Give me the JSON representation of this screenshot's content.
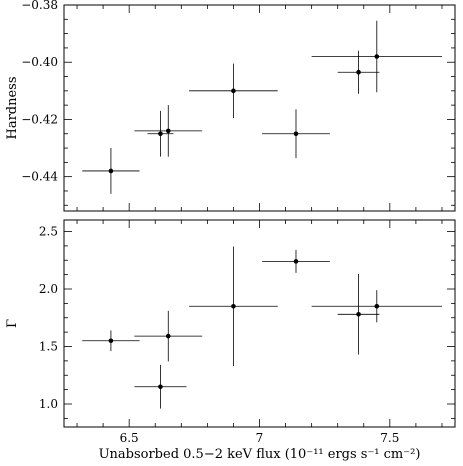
{
  "chart_data": [
    {
      "type": "scatter",
      "panel": "top",
      "ylabel": "Hardness",
      "xlim": [
        6.25,
        7.75
      ],
      "ylim": [
        -0.452,
        -0.38
      ],
      "yticks": [
        -0.44,
        -0.42,
        -0.4,
        -0.38
      ],
      "ytick_labels": [
        "−0.44",
        "−0.42",
        "−0.40",
        "−0.38"
      ],
      "points": [
        {
          "x": 6.43,
          "y": -0.438,
          "xerr": 0.11,
          "yerr": 0.008
        },
        {
          "x": 6.62,
          "y": -0.425,
          "xerr": 0.05,
          "yerr": 0.008
        },
        {
          "x": 6.65,
          "y": -0.424,
          "xerr": 0.13,
          "yerr": 0.009
        },
        {
          "x": 6.9,
          "y": -0.41,
          "xerr": 0.17,
          "yerr": 0.0095
        },
        {
          "x": 7.14,
          "y": -0.425,
          "xerr": 0.13,
          "yerr": 0.0085
        },
        {
          "x": 7.38,
          "y": -0.4035,
          "xerr": 0.08,
          "yerr": 0.0075
        },
        {
          "x": 7.45,
          "y": -0.398,
          "xerr": 0.25,
          "yerr": 0.0125
        }
      ]
    },
    {
      "type": "scatter",
      "panel": "bottom",
      "ylabel": "Γ",
      "xlabel": "Unabsorbed 0.5−2 keV flux (10⁻¹¹ ergs s⁻¹ cm⁻²)",
      "xlim": [
        6.25,
        7.75
      ],
      "ylim": [
        0.8,
        2.6
      ],
      "yticks": [
        1.0,
        1.5,
        2.0,
        2.5
      ],
      "ytick_labels": [
        "1.0",
        "1.5",
        "2.0",
        "2.5"
      ],
      "xticks": [
        6.5,
        7.0,
        7.5
      ],
      "xtick_labels": [
        "6.5",
        "7",
        "7.5"
      ],
      "points": [
        {
          "x": 6.43,
          "y": 1.55,
          "xerr": 0.11,
          "yerr": 0.09
        },
        {
          "x": 6.62,
          "y": 1.15,
          "xerr": 0.1,
          "yerr": 0.19
        },
        {
          "x": 6.65,
          "y": 1.59,
          "xerr": 0.13,
          "yerr": 0.22
        },
        {
          "x": 6.9,
          "y": 1.85,
          "xerr": 0.17,
          "yerr": 0.52
        },
        {
          "x": 7.14,
          "y": 2.24,
          "xerr": 0.13,
          "yerr": 0.1
        },
        {
          "x": 7.38,
          "y": 1.78,
          "xerr": 0.08,
          "yerr": 0.35
        },
        {
          "x": 7.45,
          "y": 1.85,
          "xerr": 0.25,
          "yerr": 0.14
        }
      ]
    }
  ]
}
